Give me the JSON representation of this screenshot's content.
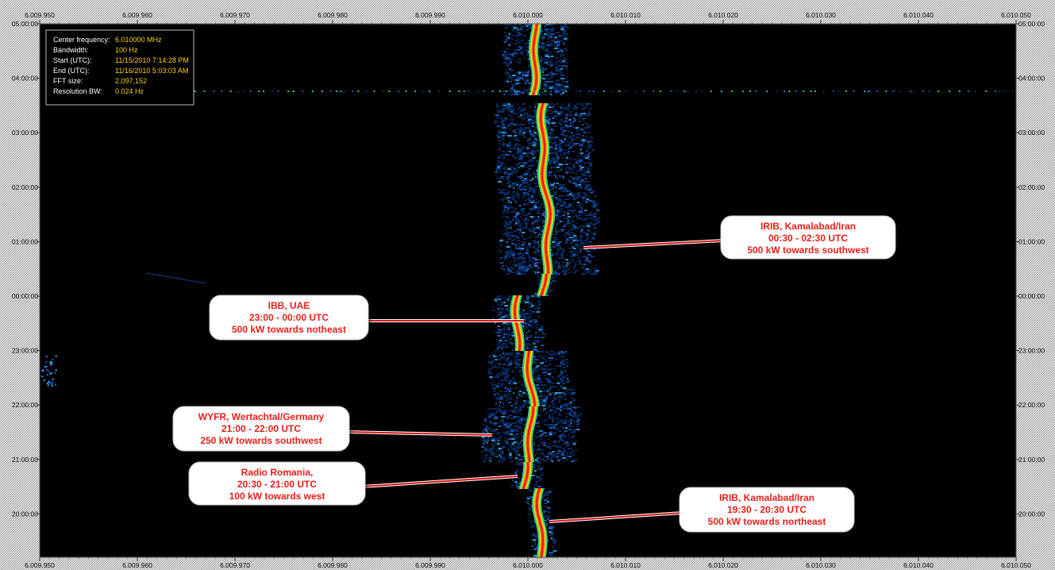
{
  "info_box": {
    "rows": [
      {
        "label": "Center frequency:",
        "value": "6.010000 MHz"
      },
      {
        "label": "Bandwidth:",
        "value": "100 Hz"
      },
      {
        "label": "Start (UTC):",
        "value": "11/15/2010 7:14:28 PM"
      },
      {
        "label": "End (UTC):",
        "value": "11/16/2010 5:03:03 AM"
      },
      {
        "label": "FFT size:",
        "value": "2,097,152"
      },
      {
        "label": "Resolution BW:",
        "value": "0.024 Hz"
      }
    ]
  },
  "chart_data": {
    "type": "heatmap",
    "x_ticks": [
      "6.009.950",
      "6.009.960",
      "6.009.970",
      "6.009.980",
      "6.009.990",
      "6.010.000",
      "6.010.010",
      "6.010.020",
      "6.010.030",
      "6.010.040",
      "6.010.050"
    ],
    "x_range_hz": [
      6009950,
      6010050
    ],
    "y_ticks": [
      "05:00:00",
      "04:00:00",
      "03:00:00",
      "02:00:00",
      "01:00:00",
      "00:00:00",
      "23:00:00",
      "22:00:00",
      "21:00:00",
      "20:00:00"
    ],
    "colors": {
      "background": "#000000",
      "frame_hatch": "#cfcfcf",
      "label_text": "#e8201a",
      "label_box": "#ffffff",
      "info_value": "#ffd200",
      "info_label": "#ffffff",
      "spectrum": [
        "#08306b",
        "#1f5fd0",
        "#35b0e0",
        "#31d17a",
        "#e6e020",
        "#ff7a00",
        "#e81a12"
      ]
    },
    "annotations": [
      {
        "lines": [
          "IRIB, Kamalabad/Iran",
          "00:30 - 02:30 UTC",
          "500 kW towards southwest"
        ]
      },
      {
        "lines": [
          "IBB, UAE",
          "23:00 - 00:00 UTC",
          "500 kW towards notheast"
        ]
      },
      {
        "lines": [
          "WYFR, Wertachtal/Germany",
          "21:00 - 22:00 UTC",
          "250 kW towards southwest"
        ]
      },
      {
        "lines": [
          "Radio Romania,",
          "20:30 - 21:00 UTC",
          "100 kW towards west"
        ]
      },
      {
        "lines": [
          "IRIB, Kamalabad/Iran",
          "19:30 - 20:30 UTC",
          "500 kW towards northeast"
        ]
      }
    ]
  }
}
